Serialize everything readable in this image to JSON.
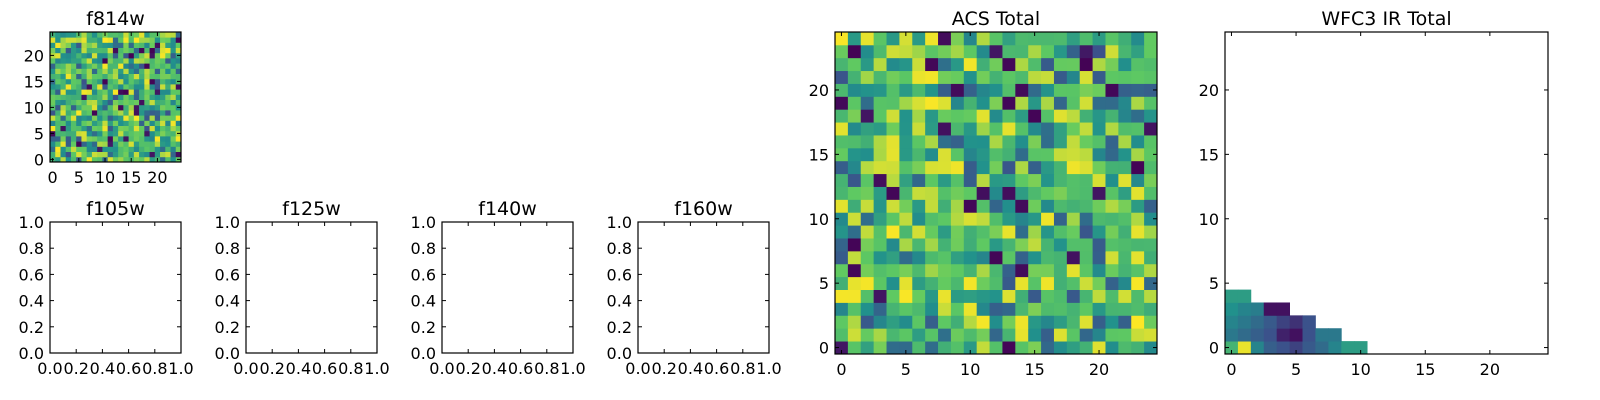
{
  "chart_data": [
    {
      "id": "f814w",
      "type": "heatmap",
      "title": "f814w",
      "grid_size": 25,
      "seed": 814,
      "xlim": [
        -0.5,
        24.5
      ],
      "ylim": [
        -0.5,
        24.5
      ],
      "xticks": [
        0,
        5,
        10,
        15,
        20
      ],
      "yticks": [
        0,
        5,
        10,
        15,
        20
      ],
      "xticklabels": [
        "0",
        "5",
        "10",
        "15",
        "20"
      ],
      "yticklabels": [
        "0",
        "5",
        "10",
        "15",
        "20"
      ]
    },
    {
      "id": "f105w",
      "type": "empty",
      "title": "f105w",
      "xlim": [
        0,
        1
      ],
      "ylim": [
        0,
        1
      ],
      "xticks": [
        0,
        0.2,
        0.4,
        0.6,
        0.8,
        1.0
      ],
      "yticks": [
        0,
        0.2,
        0.4,
        0.6,
        0.8,
        1.0
      ],
      "xticklabels": [
        "0.0",
        "0.2",
        "0.4",
        "0.6",
        "0.8",
        "1.0"
      ],
      "yticklabels": [
        "0.0",
        "0.2",
        "0.4",
        "0.6",
        "0.8",
        "1.0"
      ]
    },
    {
      "id": "f125w",
      "type": "empty",
      "title": "f125w",
      "xlim": [
        0,
        1
      ],
      "ylim": [
        0,
        1
      ],
      "xticks": [
        0,
        0.2,
        0.4,
        0.6,
        0.8,
        1.0
      ],
      "yticks": [
        0,
        0.2,
        0.4,
        0.6,
        0.8,
        1.0
      ],
      "xticklabels": [
        "0.0",
        "0.2",
        "0.4",
        "0.6",
        "0.8",
        "1.0"
      ],
      "yticklabels": [
        "0.0",
        "0.2",
        "0.4",
        "0.6",
        "0.8",
        "1.0"
      ]
    },
    {
      "id": "f140w",
      "type": "empty",
      "title": "f140w",
      "xlim": [
        0,
        1
      ],
      "ylim": [
        0,
        1
      ],
      "xticks": [
        0,
        0.2,
        0.4,
        0.6,
        0.8,
        1.0
      ],
      "yticks": [
        0,
        0.2,
        0.4,
        0.6,
        0.8,
        1.0
      ],
      "xticklabels": [
        "0.0",
        "0.2",
        "0.4",
        "0.6",
        "0.8",
        "1.0"
      ],
      "yticklabels": [
        "0.0",
        "0.2",
        "0.4",
        "0.6",
        "0.8",
        "1.0"
      ]
    },
    {
      "id": "f160w",
      "type": "empty",
      "title": "f160w",
      "xlim": [
        0,
        1
      ],
      "ylim": [
        0,
        1
      ],
      "xticks": [
        0,
        0.2,
        0.4,
        0.6,
        0.8,
        1.0
      ],
      "yticks": [
        0,
        0.2,
        0.4,
        0.6,
        0.8,
        1.0
      ],
      "xticklabels": [
        "0.0",
        "0.2",
        "0.4",
        "0.6",
        "0.8",
        "1.0"
      ],
      "yticklabels": [
        "0.0",
        "0.2",
        "0.4",
        "0.6",
        "0.8",
        "1.0"
      ]
    },
    {
      "id": "acs-total",
      "type": "heatmap",
      "title": "ACS Total",
      "grid_size": 25,
      "seed": 2024,
      "xlim": [
        -0.5,
        24.5
      ],
      "ylim": [
        -0.5,
        24.5
      ],
      "xticks": [
        0,
        5,
        10,
        15,
        20
      ],
      "yticks": [
        0,
        5,
        10,
        15,
        20
      ],
      "xticklabels": [
        "0",
        "5",
        "10",
        "15",
        "20"
      ],
      "yticklabels": [
        "0",
        "5",
        "10",
        "15",
        "20"
      ]
    },
    {
      "id": "wfc3-ir-total",
      "type": "heatmap",
      "title": "WFC3 IR Total",
      "xlim": [
        -0.5,
        24.5
      ],
      "ylim": [
        -0.5,
        24.5
      ],
      "xticks": [
        0,
        5,
        10,
        15,
        20
      ],
      "yticks": [
        0,
        5,
        10,
        15,
        20
      ],
      "xticklabels": [
        "0",
        "5",
        "10",
        "15",
        "20"
      ],
      "yticklabels": [
        "0",
        "5",
        "10",
        "15",
        "20"
      ],
      "cells": [
        {
          "row": 0,
          "values": [
            0.65,
            0.97,
            0.45,
            0.3,
            0.25,
            0.2,
            0.28,
            0.35,
            0.45,
            0.55,
            0.55
          ]
        },
        {
          "row": 1,
          "values": [
            0.4,
            0.35,
            0.3,
            0.25,
            0.1,
            0.05,
            0.25,
            0.4,
            0.4
          ]
        },
        {
          "row": 2,
          "values": [
            0.45,
            0.4,
            0.35,
            0.28,
            0.2,
            0.15,
            0.25
          ]
        },
        {
          "row": 3,
          "values": [
            0.5,
            0.45,
            0.42,
            0.05,
            0.05
          ]
        },
        {
          "row": 4,
          "values": [
            0.55,
            0.55
          ]
        }
      ]
    }
  ],
  "colormap": [
    "#440154",
    "#3b528b",
    "#21918c",
    "#5ec962",
    "#fde725"
  ]
}
